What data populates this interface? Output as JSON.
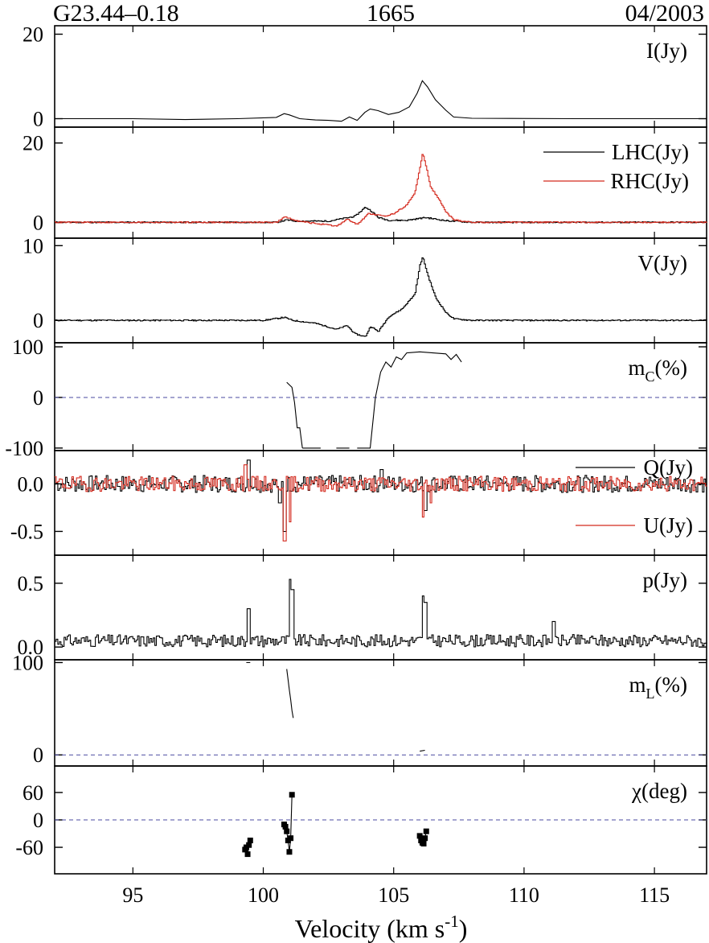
{
  "header": {
    "source": "G23.44–0.18",
    "frequency": "1665",
    "epoch": "04/2003"
  },
  "colors": {
    "black": "#000000",
    "red": "#d42a1e",
    "zero_line": "#4a4aa0"
  },
  "chart_data": {
    "type": "line",
    "xlabel": "Velocity (km s",
    "xlabel_exp": "-1",
    "xlabel_close": ")",
    "xlim": [
      92,
      117
    ],
    "xticks": [
      95,
      100,
      105,
      110,
      115
    ],
    "xticklabels": [
      "95",
      "100",
      "105",
      "110",
      "115"
    ],
    "panels": [
      {
        "id": "I",
        "label": "I(Jy)",
        "ylim": [
          -2,
          22
        ],
        "yticks": [
          0,
          20
        ],
        "yticklabels": [
          "0",
          "20"
        ],
        "series": [
          {
            "color": "#000000",
            "style": "line",
            "x": [
              92,
              95,
              97,
              99,
              100.5,
              100.8,
              101,
              101.4,
              102,
              102.5,
              103,
              103.3,
              103.6,
              103.9,
              104.1,
              104.4,
              104.8,
              105.2,
              105.6,
              105.9,
              106.1,
              106.3,
              106.6,
              107,
              107.3,
              108,
              112,
              117
            ],
            "y": [
              0,
              0,
              -0.2,
              0,
              0.3,
              1.2,
              0.9,
              0,
              -0.3,
              -0.4,
              -0.6,
              0.4,
              -0.4,
              1.5,
              2.3,
              1.9,
              1.0,
              1.5,
              2.8,
              6,
              9,
              7.5,
              4.5,
              2,
              0.4,
              0.1,
              0,
              0
            ]
          }
        ]
      },
      {
        "id": "LHC_RHC",
        "ylim": [
          -4,
          24
        ],
        "yticks": [
          0,
          20
        ],
        "yticklabels": [
          "0",
          "20"
        ],
        "legend": [
          "LHC(Jy)",
          "RHC(Jy)"
        ],
        "series": [
          {
            "name": "LHC(Jy)",
            "color": "#000000",
            "style": "step",
            "x": [
              92,
              100.5,
              100.9,
              101.2,
              102.5,
              103.5,
              103.9,
              104.1,
              104.4,
              104.8,
              105.5,
              106.2,
              107,
              108,
              117
            ],
            "y": [
              0,
              0,
              0.6,
              0.3,
              0.3,
              1.5,
              3.8,
              3.0,
              1.2,
              0.5,
              0.5,
              1.2,
              0.4,
              0,
              0
            ]
          },
          {
            "name": "RHC(Jy)",
            "color": "#d42a1e",
            "style": "step",
            "x": [
              92,
              100.5,
              100.8,
              101,
              101.4,
              102,
              102.8,
              103.2,
              103.6,
              104,
              104.2,
              104.6,
              105,
              105.5,
              105.8,
              106,
              106.1,
              106.2,
              106.4,
              106.7,
              107,
              107.3,
              108,
              117
            ],
            "y": [
              0,
              0,
              1.3,
              1.0,
              0.2,
              -0.3,
              -1.0,
              0.8,
              -0.6,
              2.2,
              2.0,
              1.5,
              2.2,
              4.5,
              7.5,
              14,
              17.5,
              15,
              9,
              6,
              2.5,
              0.6,
              0,
              0
            ]
          }
        ]
      },
      {
        "id": "V",
        "label": "V(Jy)",
        "ylim": [
          -3,
          11
        ],
        "yticks": [
          0,
          10
        ],
        "yticklabels": [
          "0",
          "10"
        ],
        "series": [
          {
            "color": "#000000",
            "style": "step",
            "x": [
              92,
              100,
              100.8,
              101.1,
              102,
              102.8,
              103.2,
              103.5,
              103.9,
              104.1,
              104.4,
              104.8,
              105.3,
              105.8,
              106,
              106.1,
              106.3,
              106.6,
              107,
              107.3,
              108,
              117
            ],
            "y": [
              0,
              0,
              0.4,
              0,
              -0.4,
              -1.2,
              -0.7,
              -1.8,
              -2.2,
              -0.8,
              -1.5,
              0.5,
              1.5,
              3.5,
              7.5,
              8.5,
              6,
              3,
              1,
              0.2,
              0,
              0
            ]
          }
        ]
      },
      {
        "id": "mC",
        "label": "m",
        "label_sub": "C",
        "label_suffix": "(%)",
        "ylim": [
          -105,
          108
        ],
        "yticks": [
          -100,
          0,
          100
        ],
        "yticklabels": [
          "-100",
          "0",
          "100"
        ],
        "zero_line": true,
        "series": [
          {
            "color": "#000000",
            "style": "line",
            "x": [
              100.9,
              101.1,
              101.2,
              101.3,
              101.4,
              101.5
            ],
            "y": [
              30,
              20,
              -10,
              -60,
              -60,
              -100
            ]
          },
          {
            "color": "#000000",
            "style": "line",
            "x": [
              101.5,
              102.2
            ],
            "y": [
              -100,
              -100
            ]
          },
          {
            "color": "#000000",
            "style": "line",
            "x": [
              102.8,
              103.3
            ],
            "y": [
              -100,
              -100
            ]
          },
          {
            "color": "#000000",
            "style": "line",
            "x": [
              103.6,
              104.1,
              104.3,
              104.5,
              104.7,
              104.9,
              105.1,
              105.3,
              105.5,
              106,
              106.5,
              107,
              107.2,
              107.4,
              107.6
            ],
            "y": [
              -100,
              -100,
              0,
              50,
              70,
              60,
              80,
              75,
              88,
              90,
              88,
              86,
              75,
              85,
              70
            ]
          }
        ]
      },
      {
        "id": "QU",
        "ylim": [
          -0.75,
          0.35
        ],
        "yticks": [
          -0.5,
          0.0
        ],
        "yticklabels": [
          "-0.5",
          "0.0"
        ],
        "legend": [
          "Q(Jy)",
          "U(Jy)"
        ],
        "series": [
          {
            "name": "Q(Jy)",
            "color": "#000000",
            "style": "noise",
            "seed": 7,
            "amp": 0.09,
            "spikes": [
              [
                99.4,
                0.25
              ],
              [
                100.6,
                -0.2
              ],
              [
                100.8,
                -0.5
              ],
              [
                106.2,
                -0.28
              ],
              [
                104.5,
                0.15
              ]
            ]
          },
          {
            "name": "U(Jy)",
            "color": "#d42a1e",
            "style": "noise",
            "seed": 19,
            "amp": 0.08,
            "spikes": [
              [
                99.3,
                0.2
              ],
              [
                100.8,
                -0.6
              ],
              [
                101.0,
                -0.4
              ],
              [
                106.1,
                -0.35
              ],
              [
                106.4,
                -0.2
              ]
            ]
          }
        ]
      },
      {
        "id": "p",
        "label": "p(Jy)",
        "ylim": [
          -0.1,
          0.72
        ],
        "yticks": [
          0.0,
          0.5
        ],
        "yticklabels": [
          "0.0",
          "0.5"
        ],
        "series": [
          {
            "color": "#000000",
            "style": "noise_pos",
            "seed": 31,
            "amp": 0.06,
            "base": 0.04,
            "spikes": [
              [
                99.4,
                0.3
              ],
              [
                101.0,
                0.53
              ],
              [
                101.1,
                0.45
              ],
              [
                106.1,
                0.4
              ],
              [
                106.2,
                0.35
              ],
              [
                111.1,
                0.2
              ]
            ]
          }
        ]
      },
      {
        "id": "mL",
        "label": "m",
        "label_sub": "L",
        "label_suffix": "(%)",
        "ylim": [
          -12,
          103
        ],
        "yticks": [
          0,
          100
        ],
        "yticklabels": [
          "0",
          "100"
        ],
        "zero_line": true,
        "series": [
          {
            "color": "#000000",
            "style": "line",
            "x": [
              99.35,
              99.5
            ],
            "y": [
              100,
              100
            ]
          },
          {
            "color": "#000000",
            "style": "line",
            "x": [
              100.9,
              100.95,
              101.0,
              101.05,
              101.1,
              101.15
            ],
            "y": [
              93,
              82,
              70,
              60,
              48,
              40
            ]
          },
          {
            "color": "#000000",
            "style": "line",
            "x": [
              106.0,
              106.2
            ],
            "y": [
              4,
              5
            ]
          }
        ]
      },
      {
        "id": "chi",
        "label": "χ(deg)",
        "ylim": [
          -118,
          118
        ],
        "yticks": [
          -60,
          0,
          60
        ],
        "yticklabels": [
          "-60",
          "0",
          "60"
        ],
        "zero_line": true,
        "series": [
          {
            "color": "#000000",
            "style": "points_line",
            "x": [
              99.3,
              99.35,
              99.4,
              99.45,
              99.5
            ],
            "y": [
              -65,
              -60,
              -75,
              -55,
              -45
            ]
          },
          {
            "color": "#000000",
            "style": "points_line",
            "x": [
              100.8,
              100.85,
              100.9,
              100.95,
              101.0,
              101.05,
              101.1
            ],
            "y": [
              -10,
              -15,
              -25,
              -45,
              -70,
              -40,
              55
            ]
          },
          {
            "color": "#000000",
            "style": "points_line",
            "x": [
              106.0,
              106.05,
              106.1,
              106.15,
              106.2,
              106.25
            ],
            "y": [
              -35,
              -45,
              -50,
              -52,
              -40,
              -25
            ]
          }
        ]
      }
    ]
  }
}
